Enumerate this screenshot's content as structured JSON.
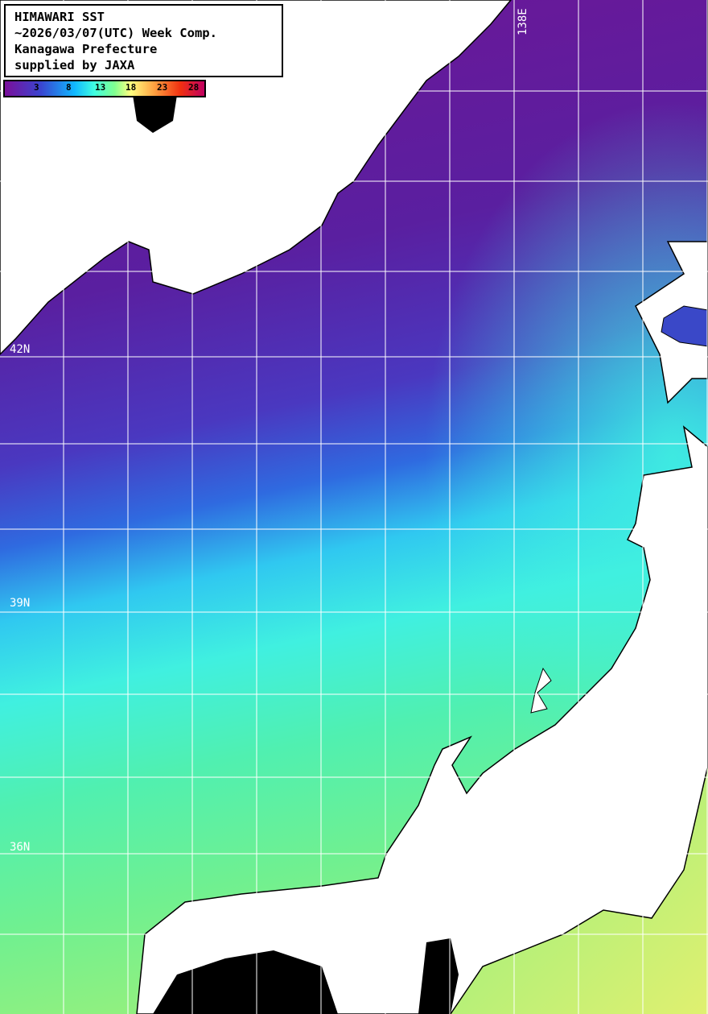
{
  "info_box": {
    "lines": [
      "HIMAWARI SST",
      "~2026/03/07(UTC) Week Comp.",
      "Kanagawa Prefecture",
      "supplied by JAXA"
    ]
  },
  "colorbar": {
    "ticks": [
      "3",
      "8",
      "13",
      "18",
      "23",
      "28"
    ],
    "colors": [
      "#7a0f9a",
      "#3a44d0",
      "#10b8ff",
      "#40ffe0",
      "#80ff90",
      "#ffff80",
      "#ffa040",
      "#f03010",
      "#c00060"
    ]
  },
  "grid_labels": {
    "lat": [
      "42N",
      "39N",
      "36N"
    ],
    "lon": [
      "138E"
    ]
  },
  "colors": {
    "land": "#ffffff",
    "no_data": "#000000",
    "grid": "#ffffff"
  }
}
